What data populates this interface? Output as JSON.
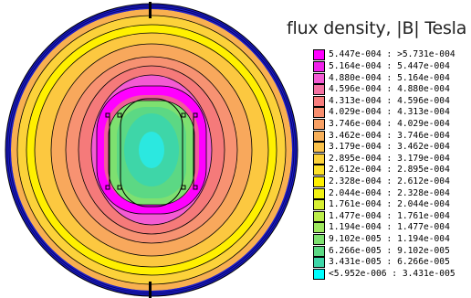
{
  "legend": {
    "title": "flux density, |B| Tesla",
    "items": [
      {
        "label": "5.447e-004 : >5.731e-004",
        "color": "#ff00ff"
      },
      {
        "label": "5.164e-004 : 5.447e-004",
        "color": "#f021ea"
      },
      {
        "label": "4.880e-004 : 5.164e-004",
        "color": "#f35bd3"
      },
      {
        "label": "4.596e-004 : 4.880e-004",
        "color": "#f472a2"
      },
      {
        "label": "4.313e-004 : 4.596e-004",
        "color": "#f77d7d"
      },
      {
        "label": "4.029e-004 : 4.313e-004",
        "color": "#f78e6e"
      },
      {
        "label": "3.746e-004 : 4.029e-004",
        "color": "#f8a064"
      },
      {
        "label": "3.462e-004 : 3.746e-004",
        "color": "#f8b05a"
      },
      {
        "label": "3.179e-004 : 3.462e-004",
        "color": "#fbc24a"
      },
      {
        "label": "2.895e-004 : 3.179e-004",
        "color": "#fcd23a"
      },
      {
        "label": "2.612e-004 : 2.895e-004",
        "color": "#fde12a"
      },
      {
        "label": "2.328e-004 : 2.612e-004",
        "color": "#fff000"
      },
      {
        "label": "2.044e-004 : 2.328e-004",
        "color": "#f2f214"
      },
      {
        "label": "1.761e-004 : 2.044e-004",
        "color": "#d8f032"
      },
      {
        "label": "1.477e-004 : 1.761e-004",
        "color": "#bcee4a"
      },
      {
        "label": "1.194e-004 : 1.477e-004",
        "color": "#9ee85e"
      },
      {
        "label": "9.102e-005 : 1.194e-004",
        "color": "#7ee070"
      },
      {
        "label": "6.266e-005 : 9.102e-005",
        "color": "#5cd884"
      },
      {
        "label": "3.431e-005 : 6.266e-005",
        "color": "#3ed6a8"
      },
      {
        "label": "<5.952e-006 : 3.431e-005",
        "color": "#00ffff"
      }
    ]
  }
}
